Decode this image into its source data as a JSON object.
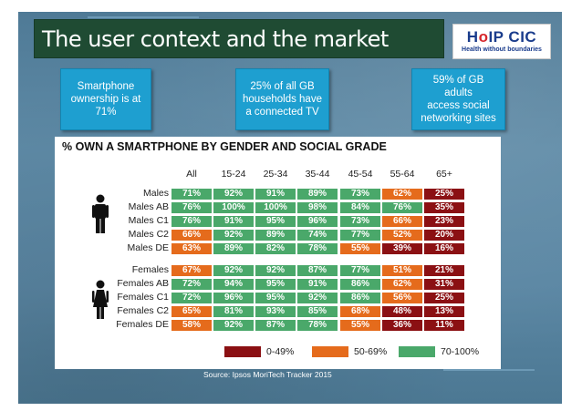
{
  "title": "The user context and the market",
  "logo": {
    "part1": "H",
    "part2": "o",
    "part3": "IP CIC",
    "tagline": "Health without boundaries"
  },
  "callouts": [
    {
      "line1": "Smartphone",
      "line2": "ownership is at",
      "line3": "71%"
    },
    {
      "line1": "25% of all GB",
      "line2": "households have",
      "line3": "a connected TV"
    },
    {
      "line1": "59% of GB adults",
      "line2": "access social",
      "line3": "networking sites"
    }
  ],
  "chart_data": {
    "type": "table",
    "title": "% OWN A SMARTPHONE BY GENDER AND SOCIAL GRADE",
    "columns": [
      "All",
      "15-24",
      "25-34",
      "35-44",
      "45-54",
      "55-64",
      "65+"
    ],
    "groups": [
      {
        "name": "Males",
        "rows": [
          {
            "label": "Males",
            "values": [
              "71%",
              "92%",
              "91%",
              "89%",
              "73%",
              "62%",
              "25%"
            ],
            "bands": [
              "g",
              "g",
              "g",
              "g",
              "g",
              "o",
              "r"
            ]
          },
          {
            "label": "Males AB",
            "values": [
              "76%",
              "100%",
              "100%",
              "98%",
              "84%",
              "76%",
              "35%"
            ],
            "bands": [
              "g",
              "g",
              "g",
              "g",
              "g",
              "g",
              "r"
            ]
          },
          {
            "label": "Males C1",
            "values": [
              "76%",
              "91%",
              "95%",
              "96%",
              "73%",
              "66%",
              "23%"
            ],
            "bands": [
              "g",
              "g",
              "g",
              "g",
              "g",
              "o",
              "r"
            ]
          },
          {
            "label": "Males C2",
            "values": [
              "66%",
              "92%",
              "89%",
              "74%",
              "77%",
              "52%",
              "20%"
            ],
            "bands": [
              "o",
              "g",
              "g",
              "g",
              "g",
              "o",
              "r"
            ]
          },
          {
            "label": "Males DE",
            "values": [
              "63%",
              "89%",
              "82%",
              "78%",
              "55%",
              "39%",
              "16%"
            ],
            "bands": [
              "o",
              "g",
              "g",
              "g",
              "o",
              "r",
              "r"
            ]
          }
        ]
      },
      {
        "name": "Females",
        "rows": [
          {
            "label": "Females",
            "values": [
              "67%",
              "92%",
              "92%",
              "87%",
              "77%",
              "51%",
              "21%"
            ],
            "bands": [
              "o",
              "g",
              "g",
              "g",
              "g",
              "o",
              "r"
            ]
          },
          {
            "label": "Females AB",
            "values": [
              "72%",
              "94%",
              "95%",
              "91%",
              "86%",
              "62%",
              "31%"
            ],
            "bands": [
              "g",
              "g",
              "g",
              "g",
              "g",
              "o",
              "r"
            ]
          },
          {
            "label": "Females C1",
            "values": [
              "72%",
              "96%",
              "95%",
              "92%",
              "86%",
              "56%",
              "25%"
            ],
            "bands": [
              "g",
              "g",
              "g",
              "g",
              "g",
              "o",
              "r"
            ]
          },
          {
            "label": "Females C2",
            "values": [
              "65%",
              "81%",
              "93%",
              "85%",
              "68%",
              "48%",
              "13%"
            ],
            "bands": [
              "o",
              "g",
              "g",
              "g",
              "o",
              "r",
              "r"
            ]
          },
          {
            "label": "Females DE",
            "values": [
              "58%",
              "92%",
              "87%",
              "78%",
              "55%",
              "36%",
              "11%"
            ],
            "bands": [
              "o",
              "g",
              "g",
              "g",
              "o",
              "r",
              "r"
            ]
          }
        ]
      }
    ],
    "legend": [
      {
        "label": "0-49%",
        "color": "#8b1013"
      },
      {
        "label": "50-69%",
        "color": "#e56b1c"
      },
      {
        "label": "70-100%",
        "color": "#4aa86a"
      }
    ]
  },
  "source": "Source: Ipsos MoriTech Tracker 2015"
}
